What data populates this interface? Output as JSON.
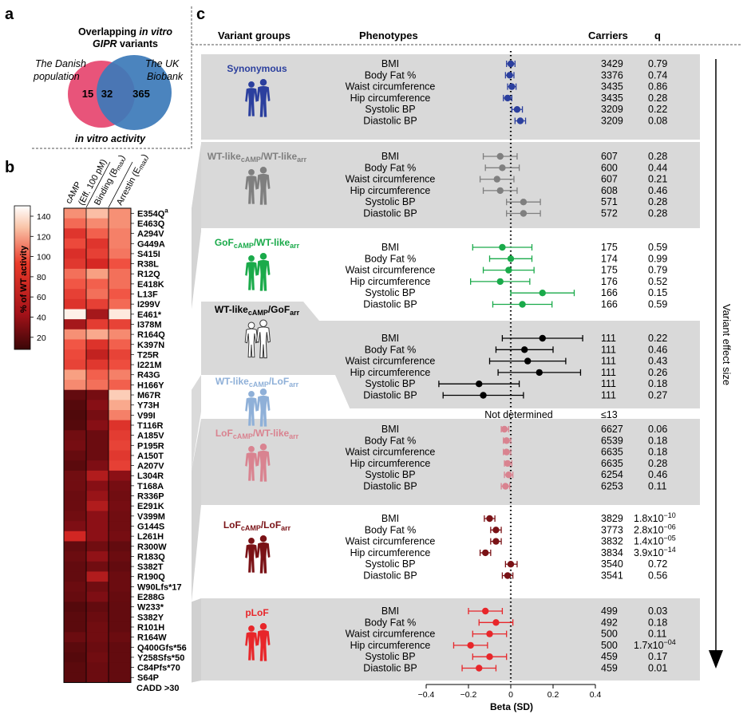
{
  "panels": {
    "a": "a",
    "b": "b",
    "c": "c"
  },
  "venn": {
    "title_line1_plain": "Overlapping ",
    "title_line1_italic": "in vitro",
    "title_line2_italic": "GIPR",
    "title_line2_plain": " variants",
    "left_label_1": "The Danish",
    "left_label_2": "population",
    "right_label_1": "The UK",
    "right_label_2": "Biobank",
    "left_only": "15",
    "overlap": "32",
    "right_only": "365",
    "left_color": "#e8547a",
    "right_color": "#3c7ab8"
  },
  "heatmap": {
    "section_label": "in vitro activity",
    "col_headers": [
      "cAMP",
      "(Eff. 100 pM)",
      "Binding (B",
      "max",
      ")",
      "Arrestin (E",
      "max",
      ")"
    ],
    "legend_title": "% of WT activity",
    "legend_ticks": [
      "140",
      "120",
      "100",
      "80",
      "60",
      "40",
      "20"
    ],
    "mutations": [
      "E354Q",
      "E463Q",
      "A294V",
      "G449A",
      "S415I",
      "R38L",
      "R12Q",
      "E418K",
      "L13F",
      "I299V",
      "E461*",
      "I378M",
      "R164Q",
      "K397N",
      "T25R",
      "I221M",
      "R43G",
      "H166Y",
      "M67R",
      "Y73H",
      "V99I",
      "T116R",
      "A185V",
      "P195R",
      "A150T",
      "A207V",
      "L304R",
      "T168A",
      "R336P",
      "E291K",
      "V399M",
      "G144S",
      "L261H",
      "R300W",
      "R183Q",
      "S382T",
      "R190Q",
      "W90Lfs*17",
      "E288G",
      "W233*",
      "S382Y",
      "R101H",
      "R164W",
      "Q400Gfs*56",
      "Y258Sfs*50",
      "C84Pfs*70",
      "S64P"
    ],
    "mutation_superscript": "a",
    "values": [
      [
        110,
        125,
        110
      ],
      [
        98,
        108,
        110
      ],
      [
        70,
        95,
        105
      ],
      [
        85,
        70,
        105
      ],
      [
        65,
        78,
        102
      ],
      [
        72,
        60,
        90
      ],
      [
        100,
        115,
        100
      ],
      [
        92,
        95,
        100
      ],
      [
        78,
        100,
        92
      ],
      [
        68,
        78,
        98
      ],
      [
        150,
        40,
        145
      ],
      [
        40,
        75,
        80
      ],
      [
        110,
        118,
        108
      ],
      [
        92,
        68,
        95
      ],
      [
        85,
        52,
        80
      ],
      [
        80,
        72,
        88
      ],
      [
        115,
        95,
        105
      ],
      [
        108,
        100,
        95
      ],
      [
        15,
        22,
        130
      ],
      [
        10,
        28,
        118
      ],
      [
        8,
        22,
        105
      ],
      [
        10,
        28,
        68
      ],
      [
        20,
        18,
        75
      ],
      [
        22,
        18,
        80
      ],
      [
        16,
        18,
        72
      ],
      [
        12,
        25,
        78
      ],
      [
        20,
        45,
        30
      ],
      [
        20,
        28,
        22
      ],
      [
        18,
        35,
        20
      ],
      [
        18,
        45,
        22
      ],
      [
        20,
        30,
        20
      ],
      [
        25,
        30,
        20
      ],
      [
        58,
        30,
        22
      ],
      [
        15,
        20,
        15
      ],
      [
        18,
        32,
        18
      ],
      [
        15,
        20,
        15
      ],
      [
        15,
        45,
        18
      ],
      [
        18,
        20,
        18
      ],
      [
        16,
        25,
        16
      ],
      [
        10,
        15,
        15
      ],
      [
        12,
        18,
        15
      ],
      [
        12,
        20,
        15
      ],
      [
        18,
        20,
        18
      ],
      [
        12,
        18,
        15
      ],
      [
        10,
        20,
        15
      ],
      [
        12,
        18,
        15
      ],
      [
        12,
        18,
        15
      ]
    ],
    "cadd_label": "CADD >30"
  },
  "forest": {
    "headers": {
      "groups": "Variant groups",
      "phenotypes": "Phenotypes",
      "carriers": "Carriers",
      "q": "q"
    },
    "axis_label": "Beta (SD)",
    "axis_ticks": [
      "−0.4",
      "−0.2",
      "0",
      "0.2",
      "0.4"
    ],
    "axis_tick_values": [
      -0.4,
      -0.2,
      0,
      0.2,
      0.4
    ],
    "axis_range": [
      -0.4,
      0.4
    ],
    "trend_label": "Variant effect size",
    "not_determined_text": "Not determined",
    "not_determined_carriers": "≤13",
    "groups": [
      {
        "label": "Synonymous",
        "sub1": "",
        "mid": "",
        "sub2": "",
        "color": "#2b3f9e",
        "rows": [
          {
            "ph": "BMI",
            "b": 0.0,
            "lo": -0.02,
            "hi": 0.02,
            "n": "3429",
            "q": "0.79",
            "qe": ""
          },
          {
            "ph": "Body Fat %",
            "b": -0.005,
            "lo": -0.025,
            "hi": 0.015,
            "n": "3376",
            "q": "0.74",
            "qe": ""
          },
          {
            "ph": "Waist circumference",
            "b": 0.005,
            "lo": -0.015,
            "hi": 0.025,
            "n": "3435",
            "q": "0.86",
            "qe": ""
          },
          {
            "ph": "Hip circumference",
            "b": -0.015,
            "lo": -0.035,
            "hi": 0.005,
            "n": "3435",
            "q": "0.28",
            "qe": ""
          },
          {
            "ph": "Systolic BP",
            "b": 0.03,
            "lo": 0.005,
            "hi": 0.055,
            "n": "3209",
            "q": "0.22",
            "qe": ""
          },
          {
            "ph": "Diastolic BP",
            "b": 0.045,
            "lo": 0.02,
            "hi": 0.07,
            "n": "3209",
            "q": "0.08",
            "qe": ""
          }
        ]
      },
      {
        "label": "WT-like",
        "sub1": "cAMP",
        "mid": "/WT-like",
        "sub2": "arr",
        "color": "#7f7f7f",
        "rows": [
          {
            "ph": "BMI",
            "b": -0.05,
            "lo": -0.13,
            "hi": 0.03,
            "n": "607",
            "q": "0.28",
            "qe": ""
          },
          {
            "ph": "Body Fat %",
            "b": -0.04,
            "lo": -0.12,
            "hi": 0.04,
            "n": "600",
            "q": "0.44",
            "qe": ""
          },
          {
            "ph": "Waist circumference",
            "b": -0.065,
            "lo": -0.145,
            "hi": 0.015,
            "n": "607",
            "q": "0.21",
            "qe": ""
          },
          {
            "ph": "Hip circumference",
            "b": -0.05,
            "lo": -0.13,
            "hi": 0.03,
            "n": "608",
            "q": "0.46",
            "qe": ""
          },
          {
            "ph": "Systolic BP",
            "b": 0.06,
            "lo": -0.02,
            "hi": 0.14,
            "n": "571",
            "q": "0.28",
            "qe": ""
          },
          {
            "ph": "Diastolic BP",
            "b": 0.06,
            "lo": -0.02,
            "hi": 0.14,
            "n": "572",
            "q": "0.28",
            "qe": ""
          }
        ]
      },
      {
        "label": "GoF",
        "sub1": "cAMP",
        "mid": "/WT-like",
        "sub2": "arr",
        "color": "#1aaa4a",
        "rows": [
          {
            "ph": "BMI",
            "b": -0.04,
            "lo": -0.18,
            "hi": 0.1,
            "n": "175",
            "q": "0.59",
            "qe": ""
          },
          {
            "ph": "Body Fat %",
            "b": 0.0,
            "lo": -0.1,
            "hi": 0.1,
            "n": "174",
            "q": "0.99",
            "qe": ""
          },
          {
            "ph": "Waist circumference",
            "b": -0.01,
            "lo": -0.13,
            "hi": 0.11,
            "n": "175",
            "q": "0.79",
            "qe": ""
          },
          {
            "ph": "Hip circumference",
            "b": -0.05,
            "lo": -0.19,
            "hi": 0.09,
            "n": "176",
            "q": "0.52",
            "qe": ""
          },
          {
            "ph": "Systolic BP",
            "b": 0.15,
            "lo": 0.0,
            "hi": 0.3,
            "n": "166",
            "q": "0.15",
            "qe": ""
          },
          {
            "ph": "Diastolic BP",
            "b": 0.055,
            "lo": -0.085,
            "hi": 0.195,
            "n": "166",
            "q": "0.59",
            "qe": ""
          }
        ]
      },
      {
        "label": "WT-like",
        "sub1": "cAMP",
        "mid": "/GoF",
        "sub2": "arr",
        "color": "#000000",
        "rows": [
          {
            "ph": "BMI",
            "b": 0.15,
            "lo": -0.04,
            "hi": 0.34,
            "n": "111",
            "q": "0.22",
            "qe": ""
          },
          {
            "ph": "Body Fat %",
            "b": 0.065,
            "lo": -0.07,
            "hi": 0.2,
            "n": "111",
            "q": "0.46",
            "qe": ""
          },
          {
            "ph": "Waist circumference",
            "b": 0.08,
            "lo": -0.1,
            "hi": 0.26,
            "n": "111",
            "q": "0.43",
            "qe": ""
          },
          {
            "ph": "Hip circumference",
            "b": 0.135,
            "lo": -0.06,
            "hi": 0.33,
            "n": "111",
            "q": "0.26",
            "qe": ""
          },
          {
            "ph": "Systolic BP",
            "b": -0.15,
            "lo": -0.34,
            "hi": 0.04,
            "n": "111",
            "q": "0.18",
            "qe": ""
          },
          {
            "ph": "Diastolic BP",
            "b": -0.13,
            "lo": -0.32,
            "hi": 0.06,
            "n": "111",
            "q": "0.27",
            "qe": ""
          }
        ]
      },
      {
        "label": "WT-like",
        "sub1": "cAMP",
        "mid": "/LoF",
        "sub2": "arr",
        "color": "#8fb0d8",
        "rows": []
      },
      {
        "label": "LoF",
        "sub1": "cAMP",
        "mid": "/WT-like",
        "sub2": "arr",
        "color": "#d98390",
        "rows": [
          {
            "ph": "BMI",
            "b": -0.03,
            "lo": -0.045,
            "hi": -0.01,
            "n": "6627",
            "q": "0.06",
            "qe": ""
          },
          {
            "ph": "Body Fat %",
            "b": -0.02,
            "lo": -0.035,
            "hi": 0.0,
            "n": "6539",
            "q": "0.18",
            "qe": ""
          },
          {
            "ph": "Waist circumference",
            "b": -0.02,
            "lo": -0.035,
            "hi": 0.0,
            "n": "6635",
            "q": "0.18",
            "qe": ""
          },
          {
            "ph": "Hip circumference",
            "b": -0.015,
            "lo": -0.03,
            "hi": 0.005,
            "n": "6635",
            "q": "0.28",
            "qe": ""
          },
          {
            "ph": "Systolic BP",
            "b": -0.01,
            "lo": -0.03,
            "hi": 0.01,
            "n": "6254",
            "q": "0.46",
            "qe": ""
          },
          {
            "ph": "Diastolic BP",
            "b": -0.025,
            "lo": -0.045,
            "hi": -0.005,
            "n": "6253",
            "q": "0.11",
            "qe": ""
          }
        ]
      },
      {
        "label": "LoF",
        "sub1": "cAMP",
        "mid": "/LoF",
        "sub2": "arr",
        "color": "#7a1216",
        "rows": [
          {
            "ph": "BMI",
            "b": -0.1,
            "lo": -0.125,
            "hi": -0.075,
            "n": "3829",
            "q": "1.8x10",
            "qe": "−10"
          },
          {
            "ph": "Body Fat %",
            "b": -0.07,
            "lo": -0.095,
            "hi": -0.045,
            "n": "3773",
            "q": "2.8x10",
            "qe": "−06"
          },
          {
            "ph": "Waist circumference",
            "b": -0.07,
            "lo": -0.095,
            "hi": -0.045,
            "n": "3832",
            "q": "1.4x10",
            "qe": "−05"
          },
          {
            "ph": "Hip circumference",
            "b": -0.12,
            "lo": -0.145,
            "hi": -0.095,
            "n": "3834",
            "q": "3.9x10",
            "qe": "−14"
          },
          {
            "ph": "Systolic BP",
            "b": 0.0,
            "lo": -0.025,
            "hi": 0.03,
            "n": "3540",
            "q": "0.72",
            "qe": ""
          },
          {
            "ph": "Diastolic BP",
            "b": -0.015,
            "lo": -0.04,
            "hi": 0.01,
            "n": "3541",
            "q": "0.56",
            "qe": ""
          }
        ]
      },
      {
        "label": "pLoF",
        "sub1": "",
        "mid": "",
        "sub2": "",
        "color": "#e8262a",
        "rows": [
          {
            "ph": "BMI",
            "b": -0.12,
            "lo": -0.2,
            "hi": -0.04,
            "n": "499",
            "q": "0.03",
            "qe": ""
          },
          {
            "ph": "Body Fat %",
            "b": -0.07,
            "lo": -0.15,
            "hi": 0.01,
            "n": "492",
            "q": "0.18",
            "qe": ""
          },
          {
            "ph": "Waist circumference",
            "b": -0.1,
            "lo": -0.18,
            "hi": -0.02,
            "n": "500",
            "q": "0.11",
            "qe": ""
          },
          {
            "ph": "Hip circumference",
            "b": -0.19,
            "lo": -0.27,
            "hi": -0.11,
            "n": "500",
            "q": "1.7x10",
            "qe": "−04"
          },
          {
            "ph": "Systolic BP",
            "b": -0.1,
            "lo": -0.18,
            "hi": -0.02,
            "n": "459",
            "q": "0.17",
            "qe": ""
          },
          {
            "ph": "Diastolic BP",
            "b": -0.15,
            "lo": -0.23,
            "hi": -0.07,
            "n": "459",
            "q": "0.01",
            "qe": ""
          }
        ]
      }
    ]
  }
}
